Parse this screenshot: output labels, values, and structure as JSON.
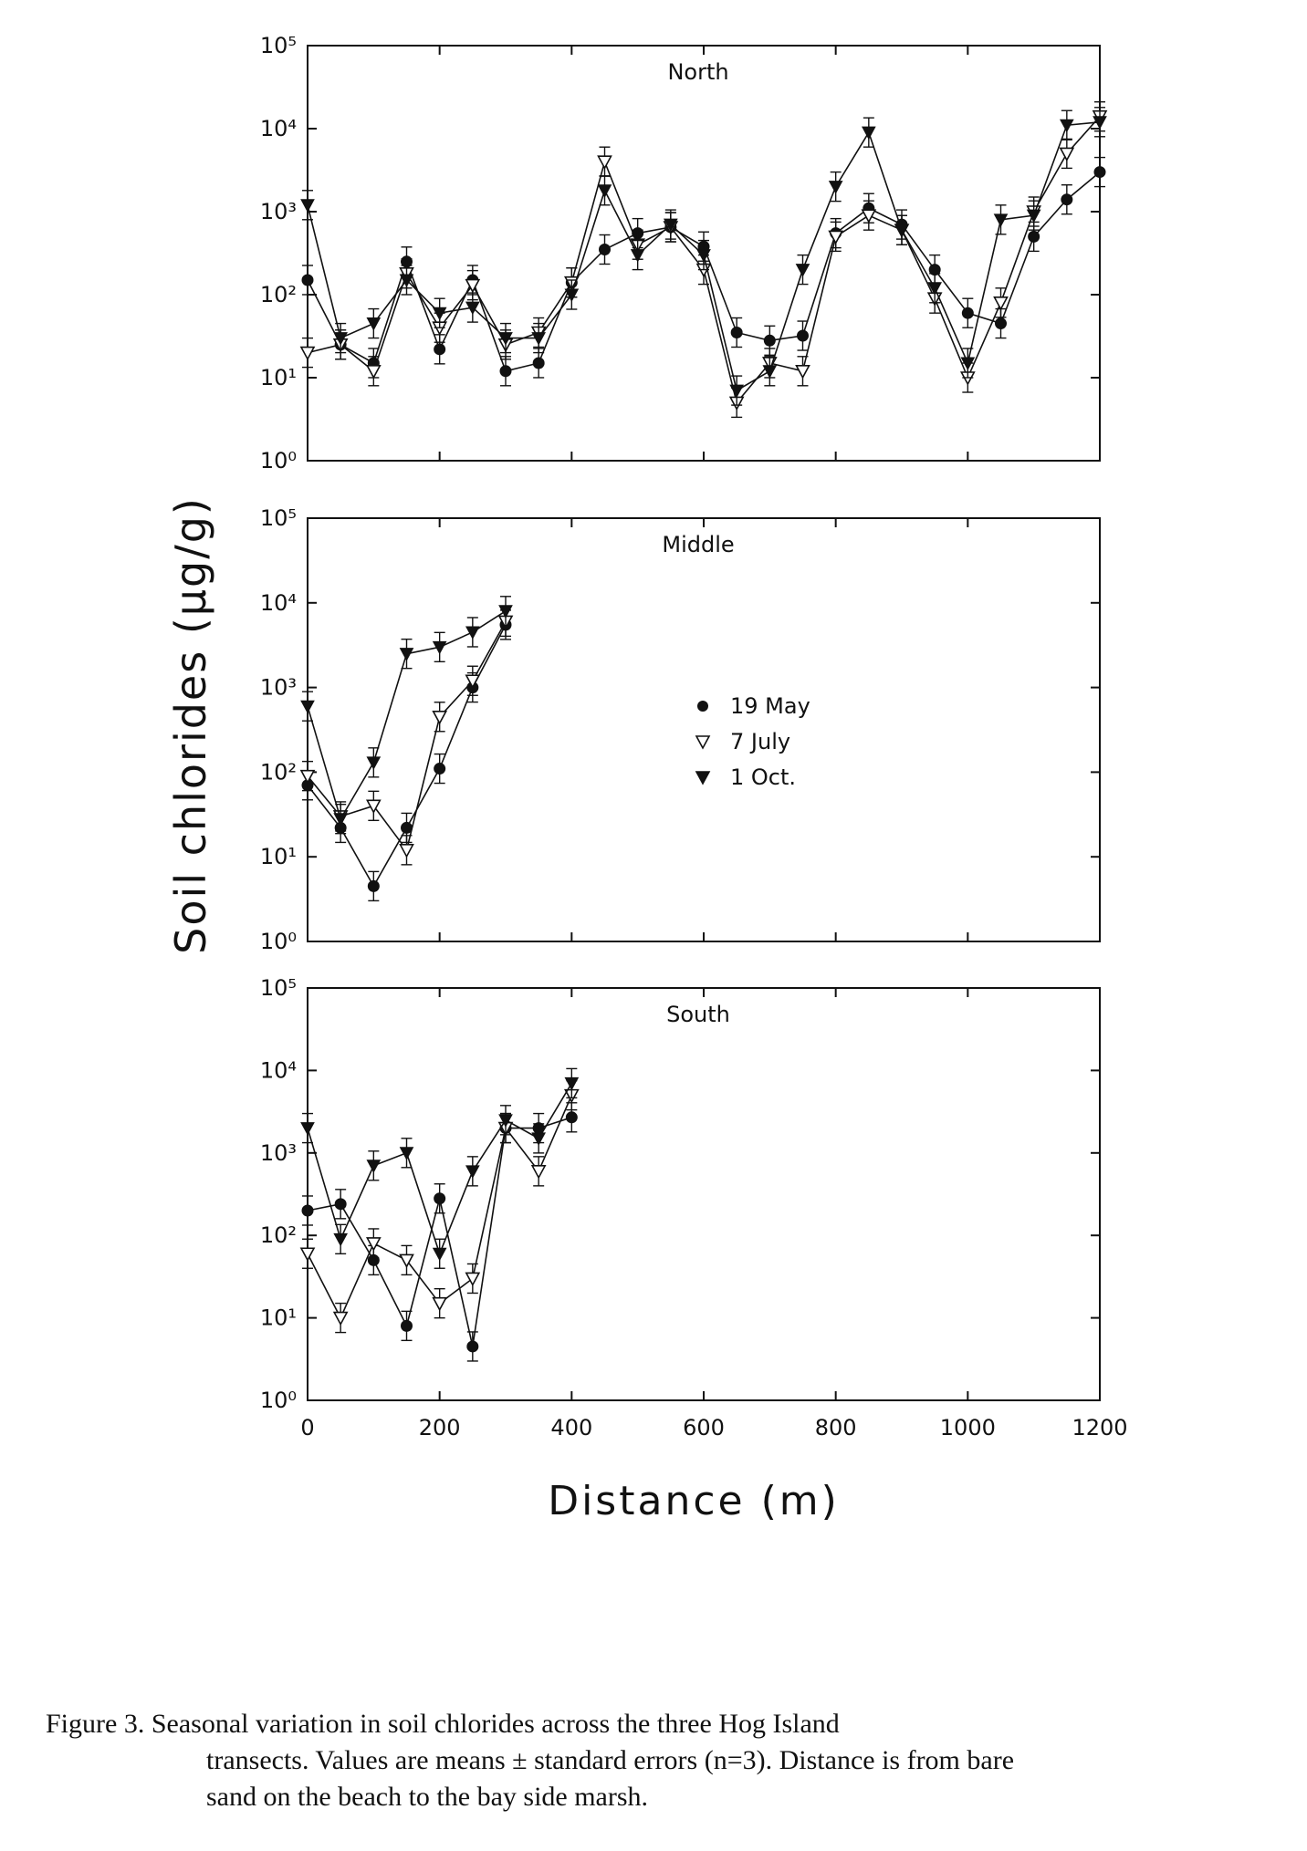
{
  "chart_data": [
    {
      "type": "line",
      "title": "North",
      "xlim": [
        0,
        1200
      ],
      "ylim": [
        1,
        100000
      ],
      "yscale": "log",
      "series": [
        {
          "name": "19 May",
          "marker": "filled-circle",
          "x": [
            0,
            50,
            100,
            150,
            200,
            250,
            300,
            350,
            400,
            450,
            500,
            550,
            600,
            650,
            700,
            750,
            800,
            850,
            900,
            950,
            1000,
            1050,
            1100,
            1150,
            1200
          ],
          "y": [
            150,
            25,
            15,
            250,
            22,
            150,
            12,
            15,
            140,
            350,
            550,
            650,
            380,
            35,
            28,
            32,
            550,
            1100,
            700,
            200,
            60,
            45,
            500,
            1400,
            3000
          ]
        },
        {
          "name": "7 July",
          "marker": "open-triangle",
          "x": [
            0,
            50,
            100,
            150,
            200,
            250,
            300,
            350,
            400,
            450,
            500,
            550,
            600,
            650,
            700,
            750,
            800,
            850,
            900,
            950,
            1000,
            1050,
            1100,
            1150,
            1200
          ],
          "y": [
            20,
            25,
            12,
            180,
            40,
            130,
            25,
            35,
            140,
            4000,
            400,
            650,
            200,
            5,
            15,
            12,
            500,
            900,
            600,
            90,
            10,
            80,
            1000,
            5000,
            14000
          ]
        },
        {
          "name": "1 Oct.",
          "marker": "filled-triangle",
          "x": [
            0,
            50,
            100,
            150,
            200,
            250,
            300,
            350,
            400,
            450,
            500,
            550,
            600,
            650,
            700,
            750,
            800,
            850,
            900,
            950,
            1000,
            1050,
            1100,
            1150,
            1200
          ],
          "y": [
            1200,
            30,
            45,
            150,
            60,
            70,
            30,
            30,
            100,
            1800,
            300,
            700,
            300,
            7,
            12,
            200,
            2000,
            9000,
            600,
            120,
            15,
            800,
            900,
            11000,
            12000
          ]
        }
      ]
    },
    {
      "type": "line",
      "title": "Middle",
      "xlim": [
        0,
        1200
      ],
      "ylim": [
        1,
        100000
      ],
      "yscale": "log",
      "legend": {
        "position": "center",
        "entries": [
          "19 May",
          "7 July",
          "1 Oct."
        ]
      },
      "series": [
        {
          "name": "19 May",
          "marker": "filled-circle",
          "x": [
            0,
            50,
            100,
            150,
            200,
            250,
            300
          ],
          "y": [
            70,
            22,
            4.5,
            22,
            110,
            1000,
            5500
          ]
        },
        {
          "name": "7 July",
          "marker": "open-triangle",
          "x": [
            0,
            50,
            100,
            150,
            200,
            250,
            300
          ],
          "y": [
            90,
            30,
            40,
            12,
            450,
            1200,
            6000
          ]
        },
        {
          "name": "1 Oct.",
          "marker": "filled-triangle",
          "x": [
            0,
            50,
            100,
            150,
            200,
            250,
            300
          ],
          "y": [
            600,
            28,
            130,
            2500,
            3000,
            4500,
            8000
          ]
        }
      ]
    },
    {
      "type": "line",
      "title": "South",
      "xlim": [
        0,
        1200
      ],
      "ylim": [
        1,
        100000
      ],
      "yscale": "log",
      "xlabel": "Distance (m)",
      "xticks": [
        0,
        200,
        400,
        600,
        800,
        1000,
        1200
      ],
      "xticklabels": [
        "0",
        "200",
        "400",
        "600",
        "800",
        "1000",
        "1200"
      ],
      "series": [
        {
          "name": "19 May",
          "marker": "filled-circle",
          "x": [
            0,
            50,
            100,
            150,
            200,
            250,
            300,
            350,
            400
          ],
          "y": [
            200,
            240,
            50,
            8,
            280,
            4.5,
            2000,
            2000,
            2700
          ]
        },
        {
          "name": "7 July",
          "marker": "open-triangle",
          "x": [
            0,
            50,
            100,
            150,
            200,
            250,
            300,
            350,
            400
          ],
          "y": [
            60,
            10,
            80,
            50,
            15,
            30,
            2000,
            600,
            5000
          ]
        },
        {
          "name": "1 Oct.",
          "marker": "filled-triangle",
          "x": [
            0,
            50,
            100,
            150,
            200,
            250,
            300,
            350,
            400
          ],
          "y": [
            2000,
            90,
            700,
            1000,
            60,
            600,
            2500,
            1500,
            7000
          ]
        }
      ]
    }
  ],
  "y_axis_label": "Soil chlorides (μg/g)",
  "y_tick_labels": [
    "10⁰",
    "10¹",
    "10²",
    "10³",
    "10⁴",
    "10⁵"
  ],
  "caption": {
    "line1": "Figure 3.  Seasonal variation in soil chlorides across the three Hog Island",
    "line2": "transects.  Values are means ± standard errors (n=3).  Distance is from bare",
    "line3": "sand on the beach to the bay side marsh."
  }
}
